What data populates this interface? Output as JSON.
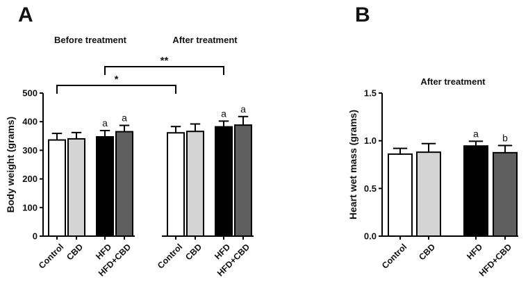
{
  "chart_data": [
    {
      "type": "bar",
      "panel_label": "A",
      "ylabel": "Body weight (grams)",
      "ylim": [
        0,
        500
      ],
      "yticks": [
        "0",
        "100",
        "200",
        "300",
        "400",
        "500"
      ],
      "group_titles": [
        "Before treatment",
        "After treatment"
      ],
      "categories": [
        "Control",
        "CBD",
        "HFD",
        "HFD+CBD",
        "Control",
        "CBD",
        "HFD",
        "HFD+CBD"
      ],
      "values": [
        336,
        340,
        347,
        365,
        361,
        366,
        382,
        388
      ],
      "errors": [
        23,
        22,
        22,
        22,
        22,
        26,
        20,
        30
      ],
      "colors": [
        "#ffffff",
        "#d4d4d4",
        "#000000",
        "#5f5f5f",
        "#ffffff",
        "#d4d4d4",
        "#000000",
        "#5f5f5f"
      ],
      "annotations": [
        "",
        "",
        "a",
        "a",
        "",
        "",
        "a",
        "a"
      ],
      "significance": [
        {
          "label": "*",
          "from": 0,
          "to": 4
        },
        {
          "label": "**",
          "from": 2,
          "to": 6
        }
      ]
    },
    {
      "type": "bar",
      "panel_label": "B",
      "title": "After treatment",
      "ylabel": "Heart wet mass (grams)",
      "ylim": [
        0,
        1.5
      ],
      "yticks": [
        "0.0",
        "0.5",
        "1.0",
        "1.5"
      ],
      "categories": [
        "Control",
        "CBD",
        "HFD",
        "HFD+CBD"
      ],
      "values": [
        0.86,
        0.88,
        0.945,
        0.875
      ],
      "errors": [
        0.06,
        0.09,
        0.05,
        0.075
      ],
      "colors": [
        "#ffffff",
        "#d4d4d4",
        "#000000",
        "#5f5f5f"
      ],
      "annotations": [
        "",
        "",
        "a",
        "b"
      ]
    }
  ]
}
